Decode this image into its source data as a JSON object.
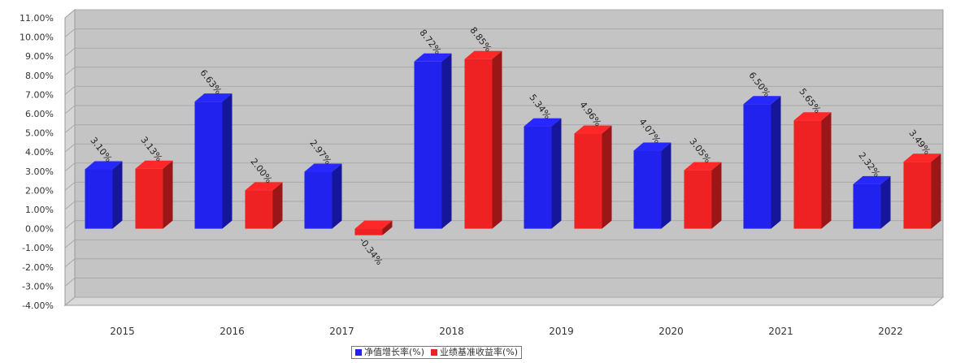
{
  "chart_data": {
    "type": "bar",
    "title": "",
    "xlabel": "",
    "ylabel": "",
    "categories": [
      "2015",
      "2016",
      "2017",
      "2018",
      "2019",
      "2020",
      "2021",
      "2022"
    ],
    "series": [
      {
        "name": "净值增长率(%)",
        "color": "#2222ee",
        "values": [
          3.1,
          6.63,
          2.97,
          8.72,
          5.34,
          4.07,
          6.5,
          2.32
        ],
        "labels": [
          "3.10%",
          "6.63%",
          "2.97%",
          "8.72%",
          "5.34%",
          "4.07%",
          "6.50%",
          "2.32%"
        ]
      },
      {
        "name": "业绩基准收益率(%)",
        "color": "#ee2222",
        "values": [
          3.13,
          2.0,
          -0.34,
          8.85,
          4.96,
          3.05,
          5.65,
          3.49
        ],
        "labels": [
          "3.13%",
          "2.00%",
          "-0.34%",
          "8.85%",
          "4.96%",
          "3.05%",
          "5.65%",
          "3.49%"
        ]
      }
    ],
    "ylim": [
      -4,
      11
    ],
    "yticks": [
      11,
      10,
      9,
      8,
      7,
      6,
      5,
      4,
      3,
      2,
      1,
      0,
      -1,
      -2,
      -3,
      -4
    ],
    "ytick_labels": [
      "11.00%",
      "10.00%",
      "9.00%",
      "8.00%",
      "7.00%",
      "6.00%",
      "5.00%",
      "4.00%",
      "3.00%",
      "2.00%",
      "1.00%",
      "0.00%",
      "-1.00%",
      "-2.00%",
      "-3.00%",
      "-4.00%"
    ],
    "grid": true,
    "style": "3d",
    "legend_position": "bottom-center"
  }
}
